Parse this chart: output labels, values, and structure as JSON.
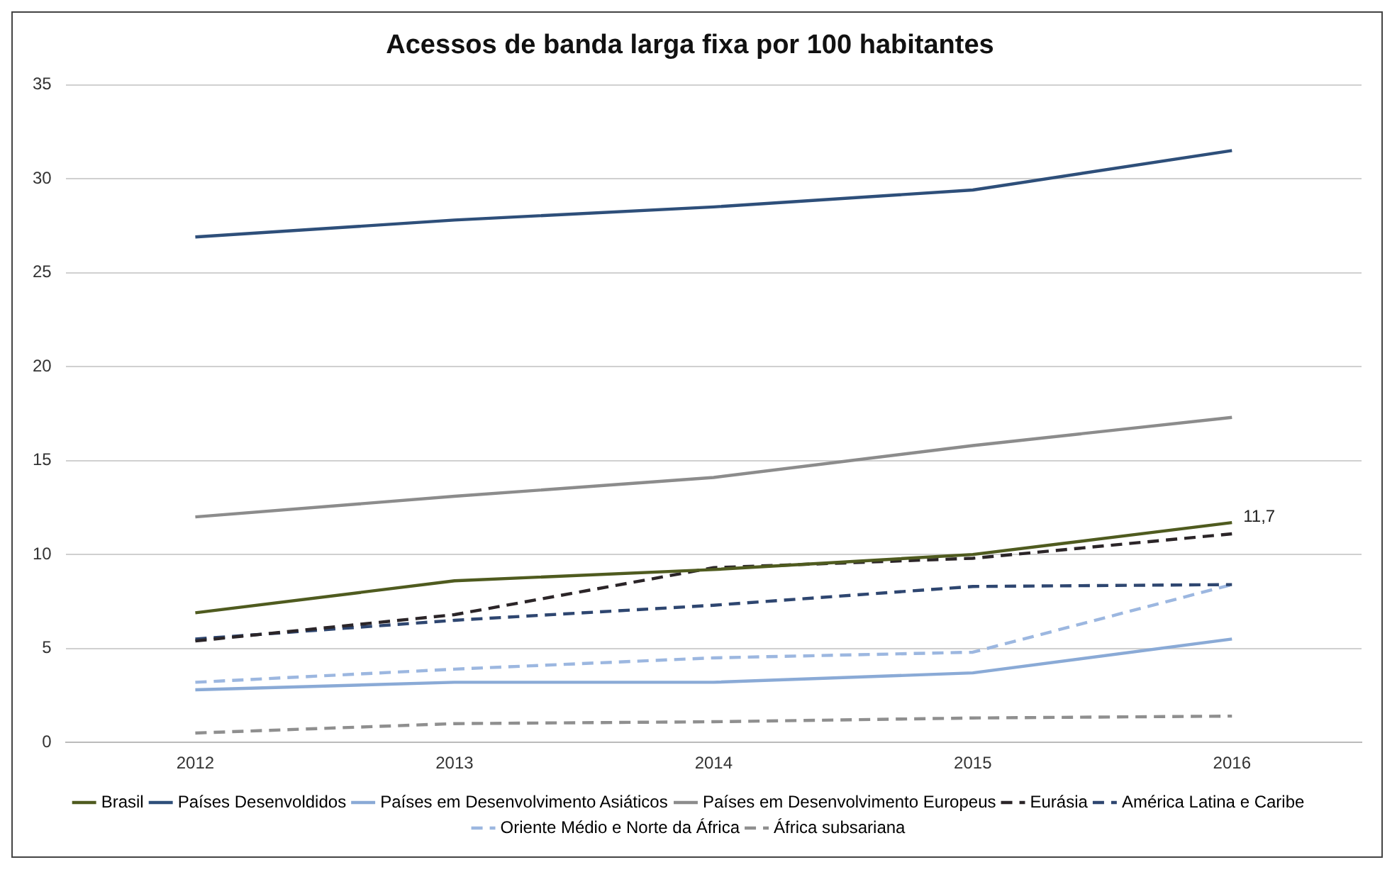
{
  "chart_data": {
    "type": "line",
    "title": "Acessos de banda larga fixa por 100 habitantes",
    "categories": [
      "2012",
      "2013",
      "2014",
      "2015",
      "2016"
    ],
    "series": [
      {
        "name": "Brasil",
        "color": "#4f5b1f",
        "values": [
          6.9,
          8.6,
          9.2,
          10.0,
          11.7
        ]
      },
      {
        "name": "Países Desenvoldidos",
        "color": "#2e4f7a",
        "values": [
          26.9,
          27.8,
          28.5,
          29.4,
          31.5
        ]
      },
      {
        "name": "Países em Desenvolvimento Asiáticos",
        "color": "#8aaad6",
        "values": [
          2.8,
          3.2,
          3.2,
          3.7,
          5.5
        ]
      },
      {
        "name": "Países em Desenvolvimento Europeus",
        "color": "#8c8c8c",
        "values": [
          12.0,
          13.1,
          14.1,
          15.8,
          17.3
        ]
      },
      {
        "name": "Eurásia",
        "color": "#2b2528",
        "line_style": "dashed",
        "values": [
          5.4,
          6.8,
          9.3,
          9.8,
          11.1
        ]
      },
      {
        "name": "América Latina e Caribe",
        "color": "#2e4670",
        "line_style": "dashed",
        "values": [
          5.5,
          6.5,
          7.3,
          8.3,
          8.4
        ]
      },
      {
        "name": "Oriente Médio e Norte da África",
        "color": "#9cb7e0",
        "line_style": "dashed",
        "values": [
          3.2,
          3.9,
          4.5,
          4.8,
          8.4
        ]
      },
      {
        "name": "África subsariana",
        "color": "#8f8f8f",
        "line_style": "dashed",
        "values": [
          0.5,
          1.0,
          1.1,
          1.3,
          1.4
        ]
      }
    ],
    "annotations": [
      {
        "text": "11,7",
        "x": "2016",
        "y": 11.7
      }
    ],
    "ylim": [
      0,
      35
    ],
    "yticks": [
      0,
      5,
      10,
      15,
      20,
      25,
      30,
      35
    ],
    "grid": "y",
    "legend": "bottom",
    "marker": "none",
    "line_style": "solid"
  }
}
